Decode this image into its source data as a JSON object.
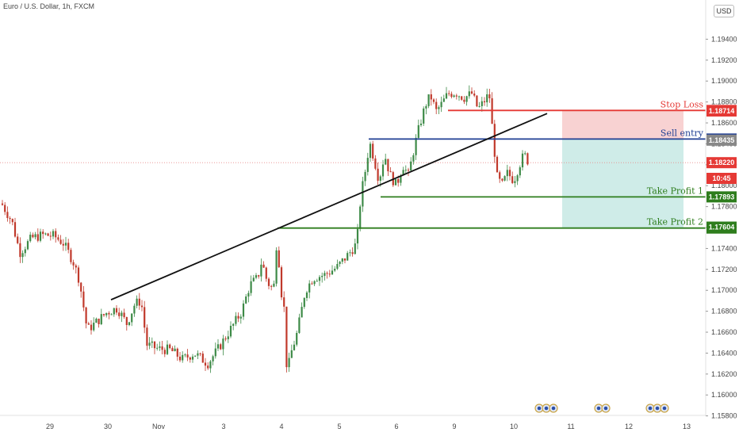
{
  "title": "Euro / U.S. Dollar, 1h, FXCM",
  "currency_label": "USD",
  "colors": {
    "up": "#3d8a47",
    "down": "#c0392b",
    "stop": "#e53935",
    "entry": "#1f3f93",
    "take": "#2e7d1d",
    "trend": "#111111",
    "risk_zone": "#f8d2d2",
    "reward_zone": "#cfece8",
    "price_line": "#e88a8a"
  },
  "chart_data": {
    "type": "candlestick",
    "x_ticks": [
      "29",
      "30",
      "Nov",
      "3",
      "4",
      "5",
      "6",
      "9",
      "10",
      "11",
      "12",
      "13"
    ],
    "y_ticks": [
      "1.19400",
      "1.19200",
      "1.19000",
      "1.18800",
      "1.18600",
      "1.18400",
      "1.18200",
      "1.18000",
      "1.17800",
      "1.17600",
      "1.17400",
      "1.17200",
      "1.17000",
      "1.16800",
      "1.16600",
      "1.16400",
      "1.16200",
      "1.16000",
      "1.15800"
    ],
    "ylim": [
      1.1572,
      1.1957
    ],
    "levels": [
      {
        "label": "Stop Loss",
        "value": 1.18719,
        "tag": "1.18719",
        "color": "stop"
      },
      {
        "label": "Sell entry",
        "value": 1.18446,
        "tag": "1.18446",
        "color": "entry"
      },
      {
        "label": "Take Profit 1",
        "value": 1.17893,
        "tag": "1.17893",
        "color": "take"
      },
      {
        "label": "Take Profit 2",
        "value": 1.17595,
        "tag": "1.17595",
        "color": "take"
      }
    ],
    "price_tags": [
      {
        "text": "1.18714",
        "value": 1.18714,
        "color": "#e53935"
      },
      {
        "text": "1.18435",
        "value": 1.18435,
        "color": "#888888"
      },
      {
        "text": "1.18220",
        "value": 1.1822,
        "color": "#e53935"
      },
      {
        "text": "10:45",
        "value": 1.1807,
        "color": "#e53935"
      },
      {
        "text": "1.17604",
        "value": 1.17604,
        "color": "#2e7d1d"
      }
    ],
    "current_price": 1.1822,
    "trendline": {
      "x1": 140,
      "p1": 1.1691,
      "x2": 690,
      "p2": 1.1869
    },
    "keypoints": [
      [
        2,
        1.1783
      ],
      [
        15,
        1.1766
      ],
      [
        25,
        1.1736
      ],
      [
        40,
        1.175
      ],
      [
        55,
        1.1753
      ],
      [
        68,
        1.1752
      ],
      [
        80,
        1.1745
      ],
      [
        92,
        1.1728
      ],
      [
        100,
        1.171
      ],
      [
        110,
        1.1662
      ],
      [
        122,
        1.167
      ],
      [
        135,
        1.1679
      ],
      [
        148,
        1.1683
      ],
      [
        160,
        1.1668
      ],
      [
        170,
        1.1687
      ],
      [
        178,
        1.169
      ],
      [
        185,
        1.1648
      ],
      [
        200,
        1.1644
      ],
      [
        215,
        1.1643
      ],
      [
        230,
        1.1634
      ],
      [
        245,
        1.164
      ],
      [
        262,
        1.163
      ],
      [
        275,
        1.1644
      ],
      [
        290,
        1.1662
      ],
      [
        305,
        1.168
      ],
      [
        315,
        1.1705
      ],
      [
        325,
        1.1712
      ],
      [
        330,
        1.1728
      ],
      [
        337,
        1.1708
      ],
      [
        345,
        1.17
      ],
      [
        350,
        1.176
      ],
      [
        353,
        1.1705
      ],
      [
        358,
        1.1686
      ],
      [
        362,
        1.162
      ],
      [
        367,
        1.164
      ],
      [
        375,
        1.166
      ],
      [
        385,
        1.17
      ],
      [
        395,
        1.1712
      ],
      [
        410,
        1.1715
      ],
      [
        425,
        1.1722
      ],
      [
        440,
        1.1735
      ],
      [
        450,
        1.1745
      ],
      [
        455,
        1.179
      ],
      [
        462,
        1.182
      ],
      [
        466,
        1.1842
      ],
      [
        472,
        1.1825
      ],
      [
        478,
        1.1805
      ],
      [
        485,
        1.183
      ],
      [
        492,
        1.181
      ],
      [
        500,
        1.18
      ],
      [
        508,
        1.182
      ],
      [
        515,
        1.181
      ],
      [
        522,
        1.1835
      ],
      [
        530,
        1.186
      ],
      [
        537,
        1.1878
      ],
      [
        543,
        1.1886
      ],
      [
        550,
        1.1871
      ],
      [
        557,
        1.1878
      ],
      [
        565,
        1.1888
      ],
      [
        575,
        1.1889
      ],
      [
        585,
        1.1884
      ],
      [
        595,
        1.1888
      ],
      [
        603,
        1.1873
      ],
      [
        610,
        1.188
      ],
      [
        617,
        1.1888
      ],
      [
        622,
        1.1845
      ],
      [
        627,
        1.1808
      ],
      [
        633,
        1.18
      ],
      [
        640,
        1.1812
      ],
      [
        648,
        1.1805
      ],
      [
        655,
        1.182
      ],
      [
        661,
        1.183
      ],
      [
        667,
        1.1822
      ]
    ]
  }
}
